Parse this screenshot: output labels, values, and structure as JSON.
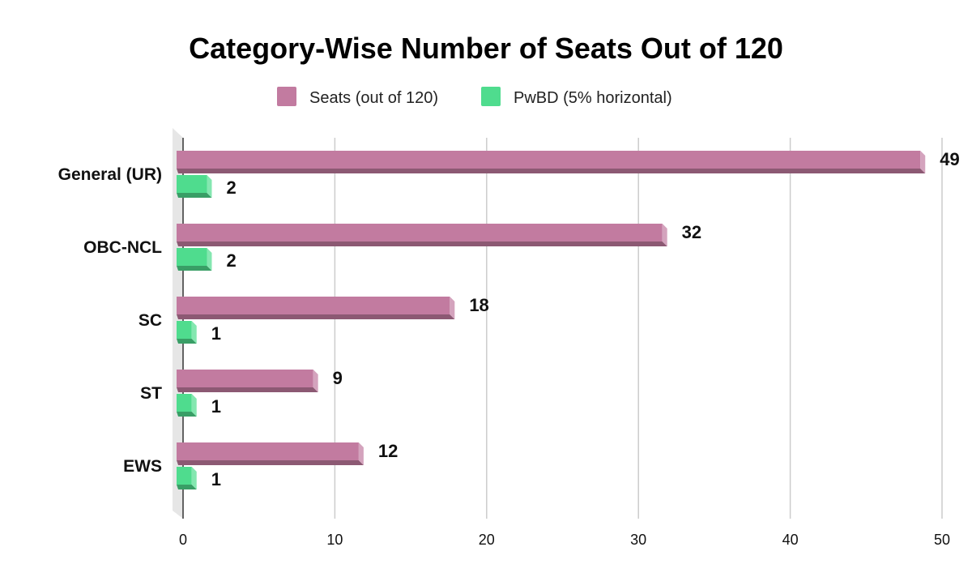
{
  "chart_data": {
    "type": "bar",
    "orientation": "horizontal",
    "title": "Category-Wise Number of Seats Out of 120",
    "categories": [
      "General (UR)",
      "OBC-NCL",
      "SC",
      "ST",
      "EWS"
    ],
    "series": [
      {
        "name": "Seats (out of 120)",
        "values": [
          49,
          32,
          18,
          9,
          12
        ],
        "color": "#c27ba0"
      },
      {
        "name": "PwBD (5% horizontal)",
        "values": [
          2,
          2,
          1,
          1,
          1
        ],
        "color": "#4fdc8e"
      }
    ],
    "xlim": [
      0,
      50
    ],
    "xticks": [
      "0",
      "10",
      "20",
      "30",
      "40",
      "50"
    ],
    "grid": true,
    "legend_position": "top",
    "style": "3d"
  }
}
